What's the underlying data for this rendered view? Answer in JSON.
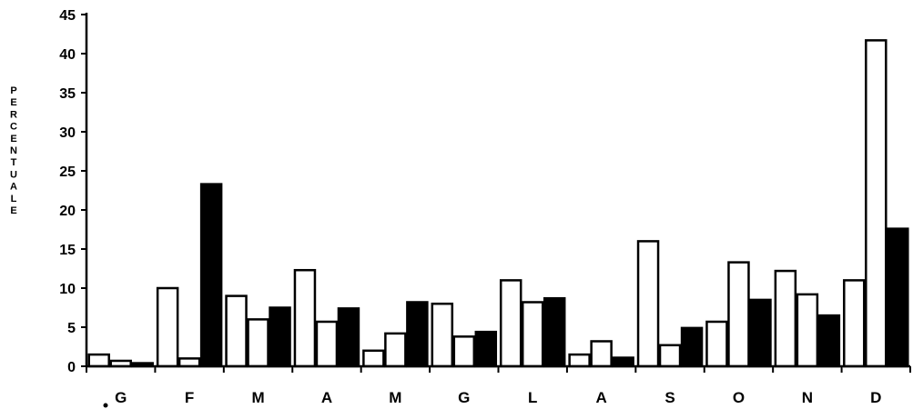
{
  "chart_data": {
    "type": "bar",
    "ylabel": "PERCENTUALE",
    "xlabel": "",
    "categories": [
      "G",
      "F",
      "M",
      "A",
      "M",
      "G",
      "L",
      "A",
      "S",
      "O",
      "N",
      "D"
    ],
    "ylim": [
      0,
      45
    ],
    "yticks": [
      "0",
      "5",
      "10",
      "15",
      "20",
      "25",
      "30",
      "35",
      "40",
      "45"
    ],
    "series": [
      {
        "values": [
          1.5,
          10,
          9,
          12.3,
          2,
          8,
          11,
          1.5,
          16,
          5.7,
          12.2,
          11
        ],
        "fill": "#ffffff"
      },
      {
        "values": [
          0.7,
          1,
          6,
          5.7,
          4.2,
          3.8,
          8.2,
          3.2,
          2.7,
          13.3,
          9.2,
          41.7
        ],
        "fill": "#ffffff"
      },
      {
        "values": [
          0.4,
          23.3,
          7.5,
          7.4,
          8.2,
          4.4,
          8.7,
          1.1,
          4.9,
          8.5,
          6.5,
          17.6
        ],
        "fill": "#000000"
      }
    ],
    "grid": false,
    "legend": "none"
  }
}
